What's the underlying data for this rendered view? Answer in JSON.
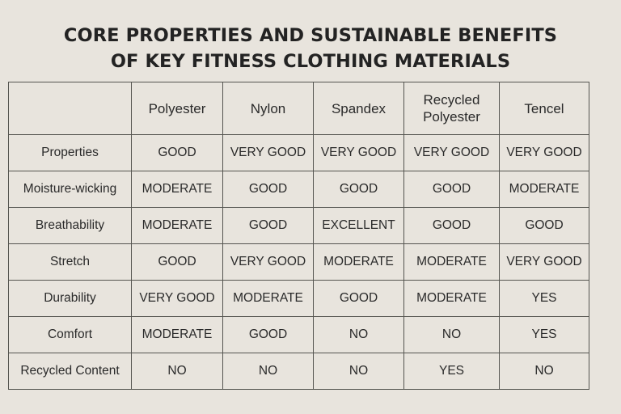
{
  "title": {
    "line1": "CORE PROPERTIES AND SUSTAINABLE BENEFITS",
    "line2": "OF KEY FITNESS CLOTHING MATERIALS"
  },
  "table": {
    "columns": [
      "Polyester",
      "Nylon",
      "Spandex",
      "Recycled Polyester",
      "Tencel"
    ],
    "rows": [
      {
        "label": "Properties",
        "cells": [
          "GOOD",
          "VERY GOOD",
          "VERY GOOD",
          "VERY GOOD",
          "VERY GOOD"
        ]
      },
      {
        "label": "Moisture-wicking",
        "cells": [
          "MODERATE",
          "GOOD",
          "GOOD",
          "GOOD",
          "MODERATE"
        ]
      },
      {
        "label": "Breathability",
        "cells": [
          "MODERATE",
          "GOOD",
          "EXCELLENT",
          "GOOD",
          "GOOD"
        ]
      },
      {
        "label": "Stretch",
        "cells": [
          "GOOD",
          "VERY GOOD",
          "MODERATE",
          "MODERATE",
          "VERY GOOD"
        ]
      },
      {
        "label": "Durability",
        "cells": [
          "VERY GOOD",
          "MODERATE",
          "GOOD",
          "MODERATE",
          "YES"
        ]
      },
      {
        "label": "Comfort",
        "cells": [
          "MODERATE",
          "GOOD",
          "NO",
          "NO",
          "YES"
        ]
      },
      {
        "label": "Recycled Content",
        "cells": [
          "NO",
          "NO",
          "NO",
          "YES",
          "NO"
        ]
      }
    ]
  }
}
